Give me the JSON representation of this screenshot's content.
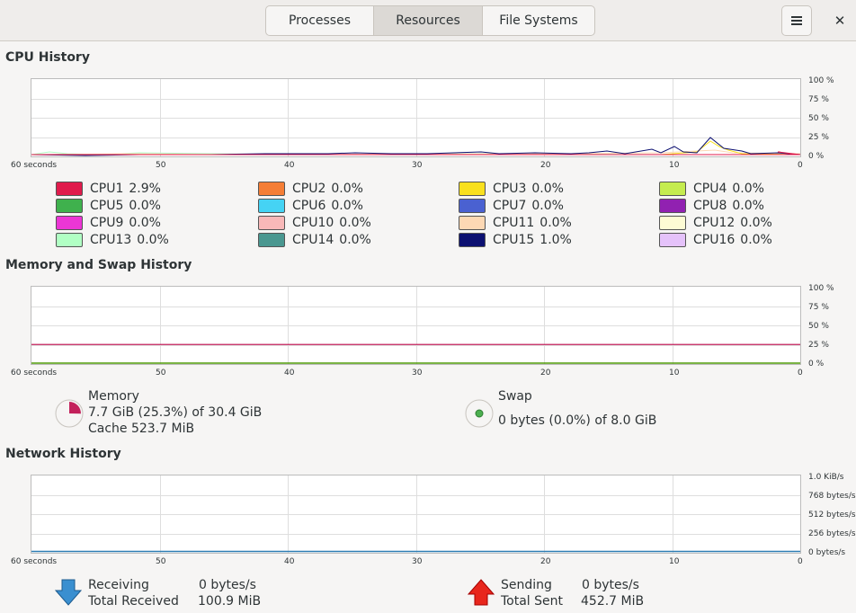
{
  "header": {
    "tabs": [
      {
        "label": "Processes",
        "active": false
      },
      {
        "label": "Resources",
        "active": true
      },
      {
        "label": "File Systems",
        "active": false
      }
    ],
    "menu_icon": "hamburger-menu-icon",
    "close_icon": "close-icon",
    "close_glyph": "✕"
  },
  "cpu": {
    "title": "CPU History",
    "y_ticks": [
      "100 %",
      "75 %",
      "50 %",
      "25 %",
      "0 %"
    ],
    "x_ticks": [
      "60 seconds",
      "50",
      "40",
      "30",
      "20",
      "10",
      "0"
    ],
    "legend": [
      {
        "label": "CPU1",
        "value": "2.9%",
        "color": "#e01b4c"
      },
      {
        "label": "CPU2",
        "value": "0.0%",
        "color": "#f57e36"
      },
      {
        "label": "CPU3",
        "value": "0.0%",
        "color": "#f9e01e"
      },
      {
        "label": "CPU4",
        "value": "0.0%",
        "color": "#c5ec4f"
      },
      {
        "label": "CPU5",
        "value": "0.0%",
        "color": "#3fb14d"
      },
      {
        "label": "CPU6",
        "value": "0.0%",
        "color": "#45d3f4"
      },
      {
        "label": "CPU7",
        "value": "0.0%",
        "color": "#4a61d1"
      },
      {
        "label": "CPU8",
        "value": "0.0%",
        "color": "#9121b1"
      },
      {
        "label": "CPU9",
        "value": "0.0%",
        "color": "#ec36d5"
      },
      {
        "label": "CPU10",
        "value": "0.0%",
        "color": "#f8b8b8"
      },
      {
        "label": "CPU11",
        "value": "0.0%",
        "color": "#fdd8b4"
      },
      {
        "label": "CPU12",
        "value": "0.0%",
        "color": "#fdfbd4"
      },
      {
        "label": "CPU13",
        "value": "0.0%",
        "color": "#b1ffc4"
      },
      {
        "label": "CPU14",
        "value": "0.0%",
        "color": "#4a9790"
      },
      {
        "label": "CPU15",
        "value": "1.0%",
        "color": "#0c1071"
      },
      {
        "label": "CPU16",
        "value": "0.0%",
        "color": "#e5c2fa"
      }
    ]
  },
  "memory": {
    "title": "Memory and Swap History",
    "y_ticks": [
      "100 %",
      "75 %",
      "50 %",
      "25 %",
      "0 %"
    ],
    "x_ticks": [
      "60 seconds",
      "50",
      "40",
      "30",
      "20",
      "10",
      "0"
    ],
    "memory_label": "Memory",
    "memory_usage": "7.7 GiB (25.3%) of 30.4 GiB",
    "memory_cache": "Cache 523.7 MiB",
    "memory_percent": 25.3,
    "memory_color": "#c3215b",
    "swap_label": "Swap",
    "swap_usage": "0 bytes (0.0%) of 8.0 GiB",
    "swap_percent": 0.0,
    "swap_color": "#4e9a06"
  },
  "network": {
    "title": "Network History",
    "y_ticks": [
      "1.0 KiB/s",
      "768 bytes/s",
      "512 bytes/s",
      "256 bytes/s",
      "0 bytes/s"
    ],
    "x_ticks": [
      "60 seconds",
      "50",
      "40",
      "30",
      "20",
      "10",
      "0"
    ],
    "receiving_label": "Receiving",
    "receiving_value": "0 bytes/s",
    "total_received_label": "Total Received",
    "total_received_value": "100.9 MiB",
    "sending_label": "Sending",
    "sending_value": "0 bytes/s",
    "total_sent_label": "Total Sent",
    "total_sent_value": "452.7 MiB",
    "receiving_color": "#2d7db3",
    "sending_color": "#cc0000"
  }
}
